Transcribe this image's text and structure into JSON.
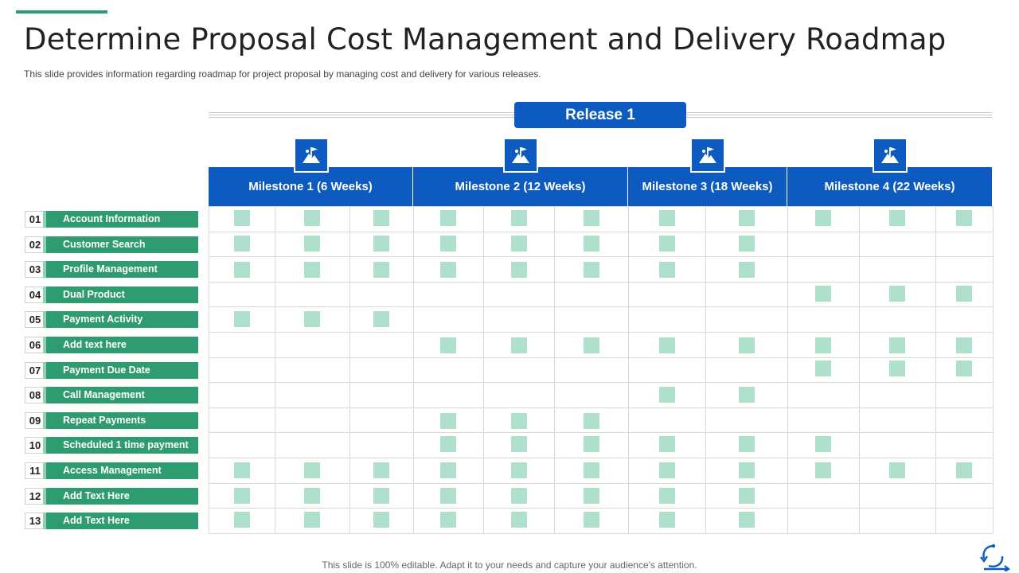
{
  "title": "Determine Proposal Cost Management and Delivery Roadmap",
  "subtitle": "This slide provides information regarding roadmap for project proposal by managing cost and delivery for various releases.",
  "release_label": "Release 1",
  "milestones": [
    {
      "label": "Milestone 1 (6 Weeks)",
      "icon": "mountain-flag-icon"
    },
    {
      "label": "Milestone 2 (12 Weeks)",
      "icon": "mountain-flag-icon"
    },
    {
      "label": "Milestone 3 (18 Weeks)",
      "icon": "mountain-flag-icon"
    },
    {
      "label": "Milestone 4 (22 Weeks)",
      "icon": "mountain-flag-icon"
    }
  ],
  "milestone_week_columns": [
    3,
    3,
    2,
    3
  ],
  "rows": [
    {
      "num": "01",
      "label": "Account Information",
      "marks": [
        1,
        1,
        1,
        1,
        1,
        1,
        1,
        1,
        1,
        1,
        1
      ]
    },
    {
      "num": "02",
      "label": "Customer Search",
      "marks": [
        1,
        1,
        1,
        1,
        1,
        1,
        1,
        1,
        0,
        0,
        0
      ]
    },
    {
      "num": "03",
      "label": "Profile Management",
      "marks": [
        1,
        1,
        1,
        1,
        1,
        1,
        1,
        1,
        0,
        0,
        0
      ]
    },
    {
      "num": "04",
      "label": "Dual Product",
      "marks": [
        0,
        0,
        0,
        0,
        0,
        0,
        0,
        0,
        1,
        1,
        1
      ]
    },
    {
      "num": "05",
      "label": "Payment Activity",
      "marks": [
        1,
        1,
        1,
        0,
        0,
        0,
        0,
        0,
        0,
        0,
        0
      ]
    },
    {
      "num": "06",
      "label": "Add  text here",
      "marks": [
        0,
        0,
        0,
        1,
        1,
        1,
        1,
        1,
        1,
        1,
        1
      ]
    },
    {
      "num": "07",
      "label": "Payment Due Date",
      "marks": [
        0,
        0,
        0,
        0,
        0,
        0,
        0,
        0,
        1,
        1,
        1
      ]
    },
    {
      "num": "08",
      "label": "Call Management",
      "marks": [
        0,
        0,
        0,
        0,
        0,
        0,
        1,
        1,
        0,
        0,
        0
      ]
    },
    {
      "num": "09",
      "label": "Repeat Payments",
      "marks": [
        0,
        0,
        0,
        1,
        1,
        1,
        0,
        0,
        0,
        0,
        0
      ]
    },
    {
      "num": "10",
      "label": "Scheduled 1 time payment",
      "marks": [
        0,
        0,
        0,
        1,
        1,
        1,
        1,
        1,
        1,
        0,
        0
      ]
    },
    {
      "num": "11",
      "label": "Access Management",
      "marks": [
        1,
        1,
        1,
        1,
        1,
        1,
        1,
        1,
        1,
        1,
        1
      ]
    },
    {
      "num": "12",
      "label": "Add Text Here",
      "marks": [
        1,
        1,
        1,
        1,
        1,
        1,
        1,
        1,
        0,
        0,
        0
      ]
    },
    {
      "num": "13",
      "label": "Add Text Here",
      "marks": [
        1,
        1,
        1,
        1,
        1,
        1,
        1,
        1,
        0,
        0,
        0
      ]
    }
  ],
  "colors": {
    "header_blue": "#0d5bc0",
    "label_green": "#2e9c70",
    "mark_green": "#aee0cc",
    "grid": "#d8d8d8"
  },
  "footer": "This slide is 100% editable. Adapt it to your needs and capture your audience's attention.",
  "logo_icon": "cycle-arrows-icon"
}
